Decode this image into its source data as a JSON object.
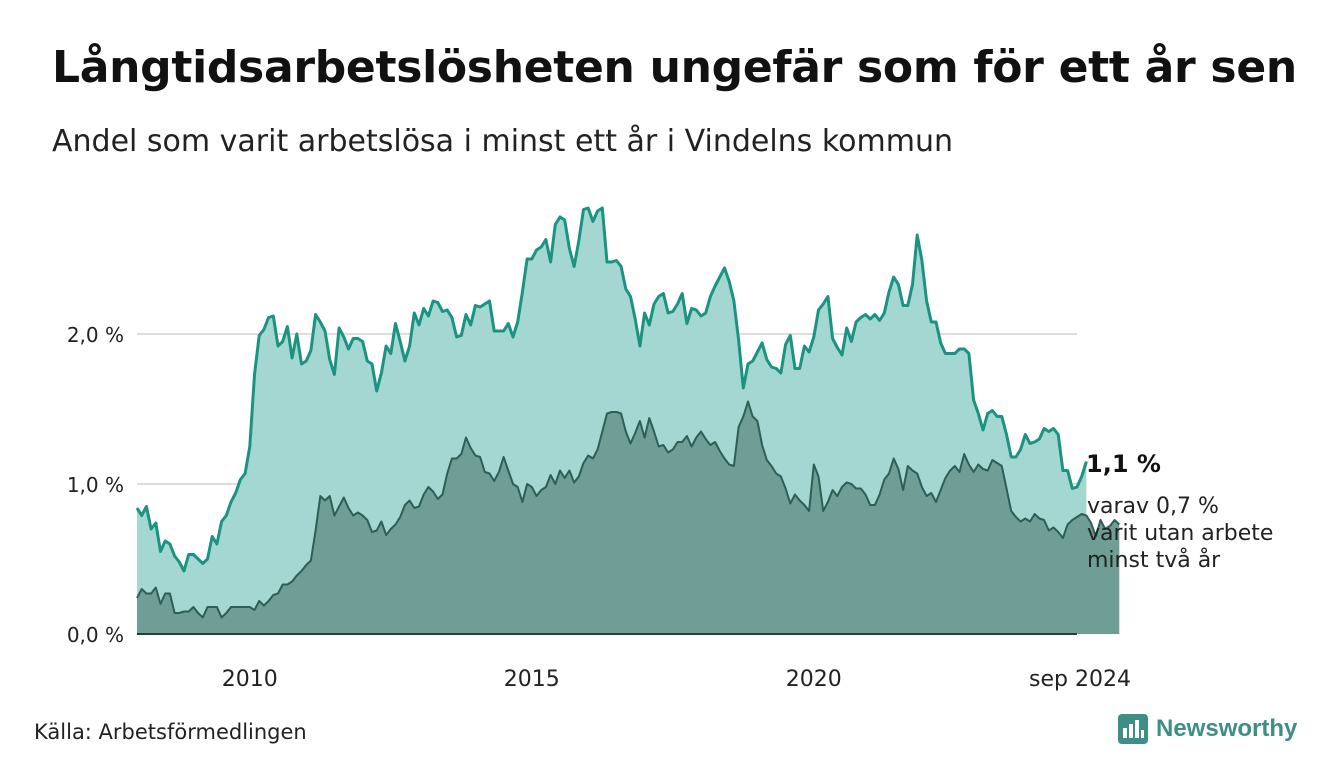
{
  "header": {
    "title": "Långtidsarbetslösheten ungefär som för ett år sen",
    "subtitle": "Andel som varit arbetslösa i minst ett år i Vindelns kommun"
  },
  "footer": {
    "source": "Källa: Arbetsförmedlingen",
    "brand": "Newsworthy"
  },
  "annotation": {
    "main": "1,1 %",
    "sub_line1": "varav 0,7 %",
    "sub_line2": "varit utan arbete",
    "sub_line3": "minst två år"
  },
  "colors": {
    "series1_line": "#1a9480",
    "series1_fill": "#a5d7d2",
    "series2_line": "#2c5f56",
    "series2_fill": "#6e9e95",
    "grid": "#dddddd",
    "brand": "#3d8f86"
  },
  "chart_data": {
    "type": "area",
    "x_start": "2008-01",
    "x_end": "2024-09",
    "x_frequency": "monthly",
    "ylim": [
      0,
      3
    ],
    "yticks": [
      {
        "value": 0,
        "label": "0,0 %"
      },
      {
        "value": 1,
        "label": "1,0 %"
      },
      {
        "value": 2,
        "label": "2,0 %"
      }
    ],
    "xticks": [
      {
        "value": "2010-01",
        "label": "2010"
      },
      {
        "value": "2015-01",
        "label": "2015"
      },
      {
        "value": "2020-01",
        "label": "2020"
      },
      {
        "value": "2024-09",
        "label": "sep 2024"
      }
    ],
    "grid": true,
    "series": [
      {
        "values": [
          0.84,
          0.79,
          0.85,
          0.7,
          0.74,
          0.55,
          0.62,
          0.6,
          0.52,
          0.48,
          0.42,
          0.53,
          0.53,
          0.5,
          0.47,
          0.5,
          0.65,
          0.6,
          0.75,
          0.79,
          0.88,
          0.94,
          1.03,
          1.07,
          1.25,
          1.73,
          1.99,
          2.03,
          2.11,
          2.12,
          1.92,
          1.95,
          2.05,
          1.84,
          2.0,
          1.8,
          1.82,
          1.89,
          2.13,
          2.08,
          2.02,
          1.83,
          1.73,
          2.04,
          1.98,
          1.9,
          1.97,
          1.97,
          1.95,
          1.82,
          1.8,
          1.62,
          1.74,
          1.92,
          1.87,
          2.07,
          1.95,
          1.82,
          1.92,
          2.14,
          2.06,
          2.17,
          2.12,
          2.22,
          2.21,
          2.15,
          2.16,
          2.11,
          1.98,
          1.99,
          2.13,
          2.06,
          2.19,
          2.18,
          2.2,
          2.22,
          2.02,
          2.02,
          2.02,
          2.07,
          1.98,
          2.08,
          2.28,
          2.5,
          2.5,
          2.56,
          2.58,
          2.63,
          2.48,
          2.73,
          2.78,
          2.76,
          2.57,
          2.45,
          2.62,
          2.83,
          2.84,
          2.75,
          2.82,
          2.84,
          2.48,
          2.48,
          2.49,
          2.45,
          2.3,
          2.25,
          2.1,
          1.92,
          2.14,
          2.06,
          2.2,
          2.25,
          2.27,
          2.14,
          2.15,
          2.2,
          2.27,
          2.07,
          2.17,
          2.16,
          2.12,
          2.14,
          2.25,
          2.32,
          2.38,
          2.44,
          2.35,
          2.22,
          1.96,
          1.64,
          1.8,
          1.82,
          1.88,
          1.94,
          1.83,
          1.78,
          1.77,
          1.74,
          1.93,
          1.99,
          1.77,
          1.77,
          1.92,
          1.88,
          1.98,
          2.16,
          2.2,
          2.25,
          1.97,
          1.91,
          1.86,
          2.04,
          1.95,
          2.08,
          2.11,
          2.13,
          2.1,
          2.13,
          2.09,
          2.14,
          2.28,
          2.38,
          2.33,
          2.19,
          2.19,
          2.33,
          2.66,
          2.49,
          2.22,
          2.08,
          2.08,
          1.94,
          1.87,
          1.87,
          1.87,
          1.9,
          1.9,
          1.87,
          1.56,
          1.47,
          1.36,
          1.47,
          1.49,
          1.45,
          1.45,
          1.33,
          1.18,
          1.18,
          1.23,
          1.33,
          1.27,
          1.28,
          1.3,
          1.37,
          1.35,
          1.37,
          1.33,
          1.09,
          1.09,
          0.97,
          0.98,
          1.05,
          1.15
        ]
      },
      {
        "values": [
          0.24,
          0.3,
          0.27,
          0.27,
          0.31,
          0.2,
          0.27,
          0.27,
          0.14,
          0.14,
          0.15,
          0.15,
          0.18,
          0.14,
          0.11,
          0.18,
          0.18,
          0.18,
          0.11,
          0.14,
          0.18,
          0.18,
          0.18,
          0.18,
          0.18,
          0.16,
          0.22,
          0.19,
          0.22,
          0.26,
          0.27,
          0.33,
          0.33,
          0.35,
          0.39,
          0.42,
          0.46,
          0.49,
          0.69,
          0.92,
          0.89,
          0.92,
          0.79,
          0.85,
          0.91,
          0.84,
          0.79,
          0.81,
          0.79,
          0.76,
          0.68,
          0.69,
          0.75,
          0.66,
          0.7,
          0.73,
          0.78,
          0.86,
          0.89,
          0.84,
          0.85,
          0.93,
          0.98,
          0.95,
          0.9,
          0.93,
          1.07,
          1.17,
          1.17,
          1.2,
          1.31,
          1.24,
          1.19,
          1.18,
          1.08,
          1.07,
          1.02,
          1.08,
          1.18,
          1.09,
          1.0,
          0.98,
          0.88,
          1.0,
          0.98,
          0.92,
          0.96,
          0.98,
          1.06,
          1.0,
          1.09,
          1.04,
          1.09,
          1.01,
          1.05,
          1.14,
          1.19,
          1.17,
          1.23,
          1.35,
          1.47,
          1.48,
          1.48,
          1.47,
          1.35,
          1.27,
          1.34,
          1.42,
          1.31,
          1.44,
          1.35,
          1.25,
          1.26,
          1.21,
          1.23,
          1.28,
          1.28,
          1.32,
          1.25,
          1.31,
          1.35,
          1.3,
          1.26,
          1.28,
          1.22,
          1.17,
          1.13,
          1.12,
          1.38,
          1.45,
          1.55,
          1.45,
          1.42,
          1.26,
          1.16,
          1.12,
          1.07,
          1.05,
          0.97,
          0.87,
          0.93,
          0.89,
          0.86,
          0.82,
          1.13,
          1.05,
          0.82,
          0.88,
          0.96,
          0.92,
          0.98,
          1.01,
          1.0,
          0.97,
          0.97,
          0.93,
          0.86,
          0.86,
          0.93,
          1.03,
          1.07,
          1.17,
          1.1,
          0.96,
          1.12,
          1.09,
          1.07,
          0.98,
          0.92,
          0.94,
          0.88,
          0.96,
          1.04,
          1.09,
          1.12,
          1.08,
          1.2,
          1.13,
          1.08,
          1.13,
          1.1,
          1.09,
          1.16,
          1.14,
          1.12,
          0.97,
          0.82,
          0.78,
          0.75,
          0.77,
          0.75,
          0.8,
          0.77,
          0.76,
          0.69,
          0.71,
          0.68,
          0.64,
          0.73,
          0.76,
          0.78,
          0.8,
          0.79,
          0.74,
          0.65,
          0.76,
          0.7,
          0.72,
          0.76,
          0.73
        ]
      }
    ]
  }
}
